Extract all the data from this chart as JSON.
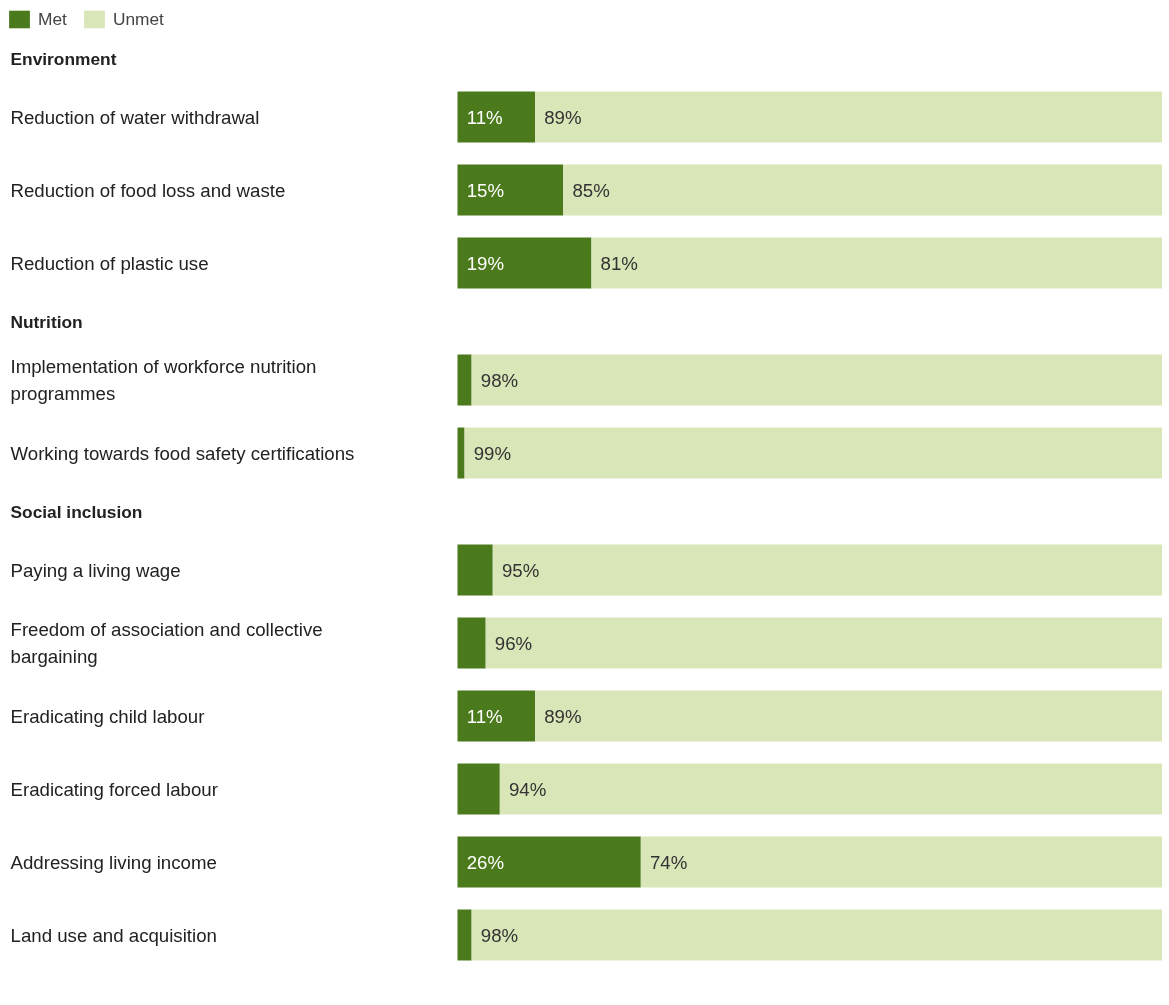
{
  "chart_data": [
    {
      "type": "bar",
      "orientation": "horizontal",
      "stacked": true,
      "title": "Environment",
      "legend": "top left",
      "tick_labels": "y",
      "xlim": [
        0,
        100
      ],
      "categories": [
        "Reduction of water withdrawal",
        "Reduction of food loss and waste",
        "Reduction of plastic use"
      ],
      "series": [
        {
          "name": "Met",
          "color": "#4a7a1c",
          "values": [
            11,
            15,
            19
          ],
          "value_labels": [
            "11%",
            "15%",
            "19%"
          ]
        },
        {
          "name": "Unmet",
          "color": "#d9e6b8",
          "values": [
            89,
            85,
            81
          ],
          "value_labels": [
            "89%",
            "85%",
            "81%"
          ]
        }
      ]
    },
    {
      "type": "bar",
      "orientation": "horizontal",
      "stacked": true,
      "title": "Nutrition",
      "tick_labels": "y",
      "xlim": [
        0,
        100
      ],
      "categories": [
        "Implementation of workforce nutrition programmes",
        "Working towards food safety certifications"
      ],
      "series": [
        {
          "color": "#4a7a1c",
          "values": [
            2,
            1
          ],
          "value_labels": [
            null,
            null
          ]
        },
        {
          "color": "#d9e6b8",
          "values": [
            98,
            99
          ],
          "value_labels": [
            "98%",
            "99%"
          ]
        }
      ]
    },
    {
      "type": "bar",
      "orientation": "horizontal",
      "stacked": true,
      "title": "Social inclusion",
      "tick_labels": "y",
      "xlim": [
        0,
        100
      ],
      "categories": [
        "Paying a living wage",
        "Freedom of association and collective bargaining",
        "Eradicating child labour",
        "Eradicating forced labour",
        "Addressing living income",
        "Land use and acquisition"
      ],
      "series": [
        {
          "color": "#4a7a1c",
          "values": [
            5,
            4,
            11,
            6,
            26,
            2
          ],
          "value_labels": [
            null,
            null,
            "11%",
            null,
            "26%",
            null
          ]
        },
        {
          "color": "#d9e6b8",
          "values": [
            95,
            96,
            89,
            94,
            74,
            98
          ],
          "value_labels": [
            "95%",
            "96%",
            "89%",
            "94%",
            "74%",
            "98%"
          ]
        }
      ]
    }
  ]
}
